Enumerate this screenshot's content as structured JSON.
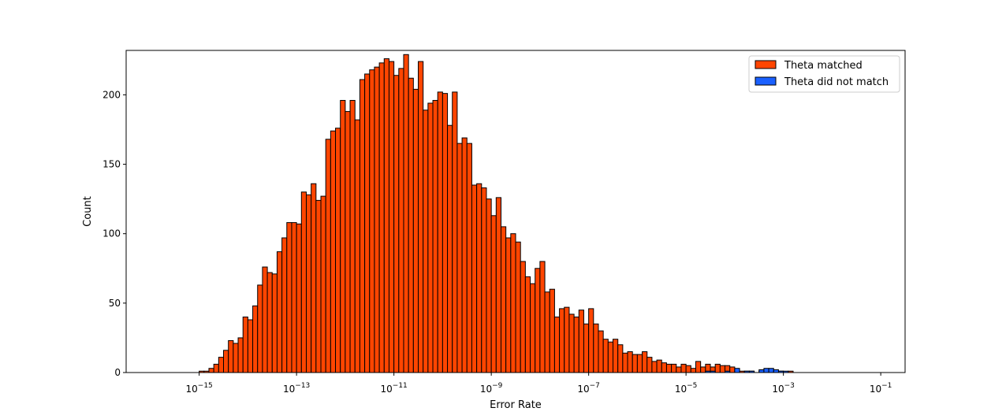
{
  "chart_data": {
    "type": "bar",
    "subtype": "histogram",
    "title": "",
    "xlabel": "Error Rate",
    "ylabel": "Count",
    "x_scale": "log",
    "x_bin_unit": "log10(error rate)",
    "x_bin_start": -16,
    "x_bin_width": 0.1,
    "xlim": [
      3.16e-17,
      0.316
    ],
    "ylim": [
      0,
      232
    ],
    "x_ticks": [
      {
        "value": 1e-15,
        "base": "10",
        "exp": "−15"
      },
      {
        "value": 1e-13,
        "base": "10",
        "exp": "−13"
      },
      {
        "value": 1e-11,
        "base": "10",
        "exp": "−11"
      },
      {
        "value": 1e-09,
        "base": "10",
        "exp": "−9"
      },
      {
        "value": 1e-07,
        "base": "10",
        "exp": "−7"
      },
      {
        "value": 1e-05,
        "base": "10",
        "exp": "−5"
      },
      {
        "value": 0.001,
        "base": "10",
        "exp": "−3"
      },
      {
        "value": 0.1,
        "base": "10",
        "exp": "−1"
      }
    ],
    "y_ticks": [
      0,
      50,
      100,
      150,
      200
    ],
    "grid": false,
    "legend_position": "top-right",
    "series": [
      {
        "name": "Theta matched",
        "color": "#ff4500",
        "values": [
          0,
          0,
          0,
          0,
          0,
          0,
          0,
          0,
          0,
          0,
          1,
          1,
          3,
          6,
          11,
          16,
          23,
          21,
          25,
          40,
          38,
          48,
          63,
          76,
          72,
          71,
          87,
          97,
          108,
          108,
          107,
          130,
          128,
          136,
          124,
          127,
          168,
          174,
          176,
          196,
          188,
          196,
          182,
          211,
          215,
          218,
          220,
          223,
          226,
          224,
          214,
          219,
          229,
          212,
          204,
          224,
          189,
          194,
          196,
          202,
          201,
          178,
          202,
          165,
          169,
          165,
          135,
          136,
          133,
          125,
          113,
          126,
          105,
          97,
          100,
          94,
          80,
          69,
          64,
          75,
          80,
          58,
          60,
          40,
          46,
          47,
          42,
          40,
          45,
          35,
          46,
          35,
          30,
          24,
          22,
          24,
          20,
          14,
          15,
          13,
          13,
          15,
          11,
          8,
          9,
          7,
          6,
          6,
          4,
          6,
          5,
          3,
          8,
          4,
          6,
          4,
          6,
          5,
          5,
          4,
          2,
          1,
          1,
          1,
          0,
          1,
          0,
          1,
          0,
          1,
          0,
          1,
          0,
          0,
          0,
          0,
          0,
          0,
          0,
          0,
          0,
          0
        ]
      },
      {
        "name": "Theta did not match",
        "color": "#1a60ff",
        "sparse_values": [
          {
            "bin": 114,
            "value": 1
          },
          {
            "bin": 115,
            "value": 1
          },
          {
            "bin": 118,
            "value": 1
          },
          {
            "bin": 120,
            "value": 3
          },
          {
            "bin": 122,
            "value": 1
          },
          {
            "bin": 123,
            "value": 1
          },
          {
            "bin": 125,
            "value": 2
          },
          {
            "bin": 126,
            "value": 3
          },
          {
            "bin": 127,
            "value": 3
          },
          {
            "bin": 128,
            "value": 2
          },
          {
            "bin": 129,
            "value": 1
          },
          {
            "bin": 130,
            "value": 1
          }
        ]
      }
    ]
  }
}
